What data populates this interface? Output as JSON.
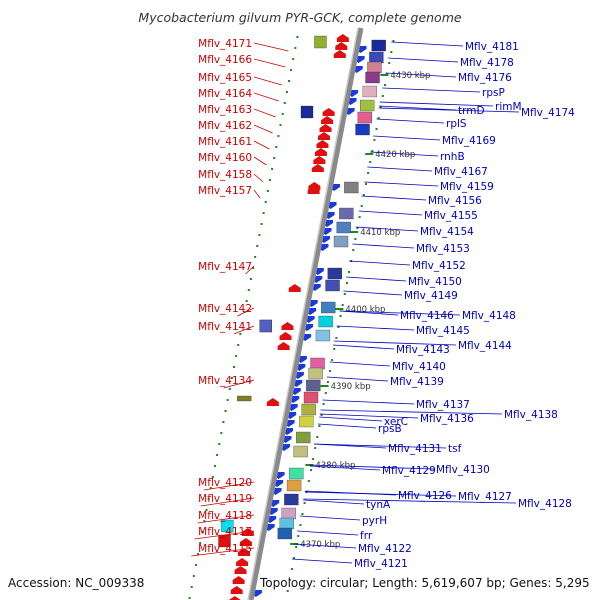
{
  "title": "Mycobacterium gilvum PYR-GCK, complete genome",
  "accession": "Accession: NC_009338",
  "topology": "Topology: circular; Length: 5,619,607 bp; Genes: 5,295",
  "colors": {
    "left_label": "#cc0000",
    "right_label": "#0000bb",
    "backbone": "#8a8a8a",
    "tick": "#1a8a1a"
  },
  "kbp_labels": [
    "4430 kbp",
    "4420 kbp",
    "4410 kbp",
    "4400 kbp",
    "4390 kbp",
    "4380 kbp",
    "4370 kbp"
  ],
  "left_labels": [
    "Mflv_4171",
    "Mflv_4166",
    "Mflv_4165",
    "Mflv_4164",
    "Mflv_4163",
    "Mflv_4162",
    "Mflv_4161",
    "Mflv_4160",
    "Mflv_4158",
    "Mflv_4157",
    "Mflv_4147",
    "Mflv_4142",
    "Mflv_4141",
    "Mflv_4134",
    "Mflv_4120",
    "Mflv_4119",
    "Mflv_4118",
    "Mflv_4117",
    "Mflv_4115"
  ],
  "right_labels": [
    "Mflv_4181",
    "Mflv_4178",
    "Mflv_4176",
    "rpsP",
    "rimM",
    "Mflv_4174",
    "trmD",
    "rplS",
    "Mflv_4169",
    "rnhB",
    "Mflv_4167",
    "Mflv_4159",
    "Mflv_4156",
    "Mflv_4155",
    "Mflv_4154",
    "Mflv_4153",
    "Mflv_4152",
    "Mflv_4150",
    "Mflv_4149",
    "Mflv_4148",
    "Mflv_4146",
    "Mflv_4145",
    "Mflv_4144",
    "Mflv_4143",
    "Mflv_4140",
    "Mflv_4139",
    "Mflv_4138",
    "Mflv_4137",
    "xerC",
    "Mflv_4136",
    "rpsB",
    "tsf",
    "Mflv_4131",
    "Mflv_4130",
    "Mflv_4129",
    "Mflv_4128",
    "Mflv_4127",
    "Mflv_4126",
    "tynA",
    "pyrH",
    "frr",
    "Mflv_4122",
    "Mflv_4121"
  ]
}
